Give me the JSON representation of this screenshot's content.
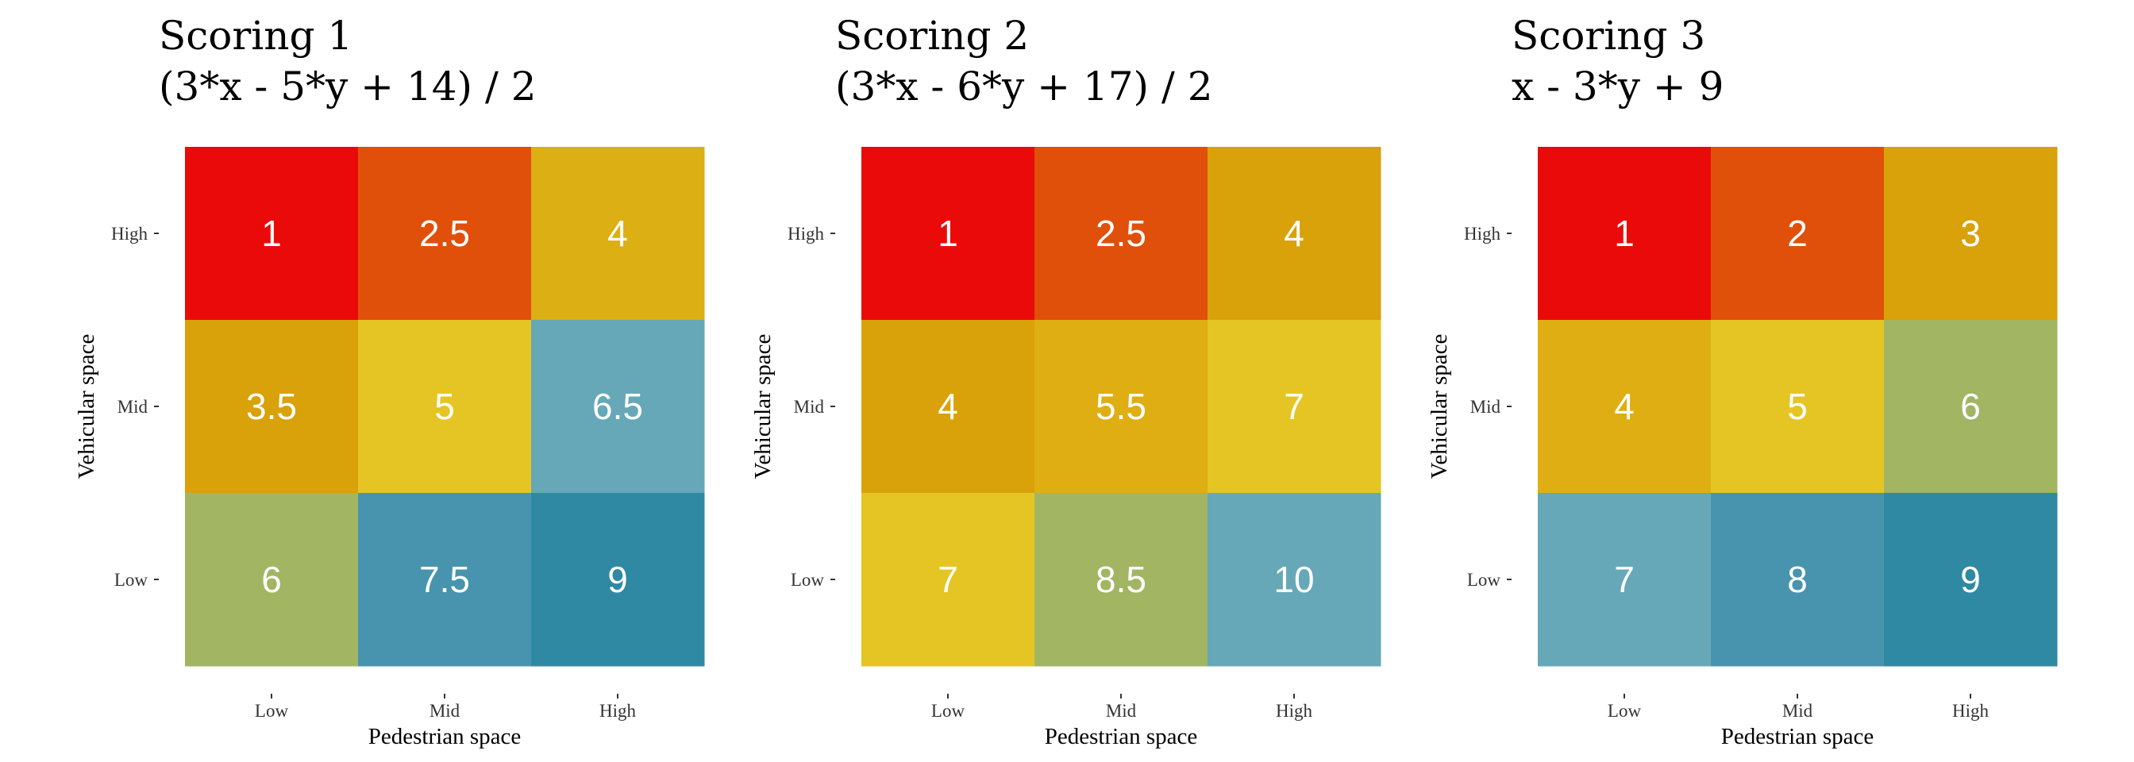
{
  "chart_data": [
    {
      "type": "heatmap",
      "title": "Scoring 1",
      "subtitle": "(3*x - 5*y + 14) / 2",
      "xlabel": "Pedestrian space",
      "ylabel": "Vehicular space",
      "x_categories": [
        "Low",
        "Mid",
        "High"
      ],
      "y_categories": [
        "High",
        "Mid",
        "Low"
      ],
      "values": [
        [
          "1",
          "2.5",
          "4"
        ],
        [
          "3.5",
          "5",
          "6.5"
        ],
        [
          "6",
          "7.5",
          "9"
        ]
      ],
      "colors": [
        [
          "#EB0A0A",
          "#E1500A",
          "#DCAF14"
        ],
        [
          "#D9A10A",
          "#E5C523",
          "#66A8B8"
        ],
        [
          "#A2B563",
          "#4894AE",
          "#2F89A3"
        ]
      ]
    },
    {
      "type": "heatmap",
      "title": "Scoring 2",
      "subtitle": "(3*x - 6*y + 17) / 2",
      "xlabel": "Pedestrian space",
      "ylabel": "Vehicular space",
      "x_categories": [
        "Low",
        "Mid",
        "High"
      ],
      "y_categories": [
        "High",
        "Mid",
        "Low"
      ],
      "values": [
        [
          "1",
          "2.5",
          "4"
        ],
        [
          "4",
          "5.5",
          "7"
        ],
        [
          "7",
          "8.5",
          "10"
        ]
      ],
      "colors": [
        [
          "#EB0A0A",
          "#E1500A",
          "#D9A10A"
        ],
        [
          "#D9A10A",
          "#DEAE12",
          "#E5C523"
        ],
        [
          "#E5C523",
          "#A2B563",
          "#66A8B8"
        ]
      ]
    },
    {
      "type": "heatmap",
      "title": "Scoring 3",
      "subtitle": "x - 3*y + 9",
      "xlabel": "Pedestrian space",
      "ylabel": "Vehicular space",
      "x_categories": [
        "Low",
        "Mid",
        "High"
      ],
      "y_categories": [
        "High",
        "Mid",
        "Low"
      ],
      "values": [
        [
          "1",
          "2",
          "3"
        ],
        [
          "4",
          "5",
          "6"
        ],
        [
          "7",
          "8",
          "9"
        ]
      ],
      "colors": [
        [
          "#EB0A0A",
          "#E1500A",
          "#D9A10A"
        ],
        [
          "#DEAE12",
          "#E5C523",
          "#A2B563"
        ],
        [
          "#66A8B8",
          "#4894AE",
          "#2F89A3"
        ]
      ]
    }
  ]
}
